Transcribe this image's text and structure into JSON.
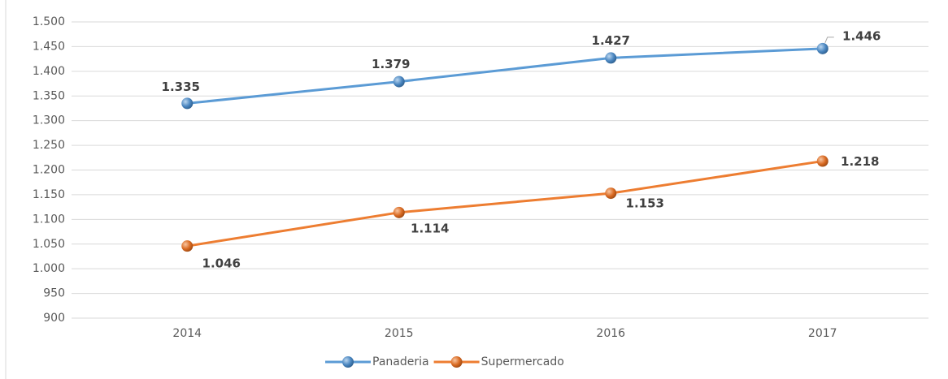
{
  "chart_data": {
    "type": "line",
    "categories": [
      "2014",
      "2015",
      "2016",
      "2017"
    ],
    "series": [
      {
        "name": "Panaderia",
        "color": "#5b9bd5",
        "values": [
          1335,
          1379,
          1427,
          1446
        ],
        "value_labels": [
          "1.335",
          "1.379",
          "1.427",
          "1.446"
        ]
      },
      {
        "name": "Supermercado",
        "color": "#ed7d31",
        "values": [
          1046,
          1114,
          1153,
          1218
        ],
        "value_labels": [
          "1.046",
          "1.114",
          "1.153",
          "1.218"
        ]
      }
    ],
    "ylim": [
      900,
      1500
    ],
    "yticks": [
      900,
      950,
      {
        "value": 1000,
        "label": "1.000"
      },
      {
        "value": 1050,
        "label": "1.050"
      },
      {
        "value": 1100,
        "label": "1.100"
      },
      {
        "value": 1150,
        "label": "1.150"
      },
      {
        "value": 1200,
        "label": "1.200"
      },
      {
        "value": 1250,
        "label": "1.250"
      },
      {
        "value": 1300,
        "label": "1.300"
      },
      {
        "value": 1350,
        "label": "1.350"
      },
      {
        "value": 1400,
        "label": "1.400"
      },
      {
        "value": 1450,
        "label": "1.450"
      },
      {
        "value": 1500,
        "label": "1.500"
      }
    ],
    "grid": true,
    "legend": "bottom"
  }
}
